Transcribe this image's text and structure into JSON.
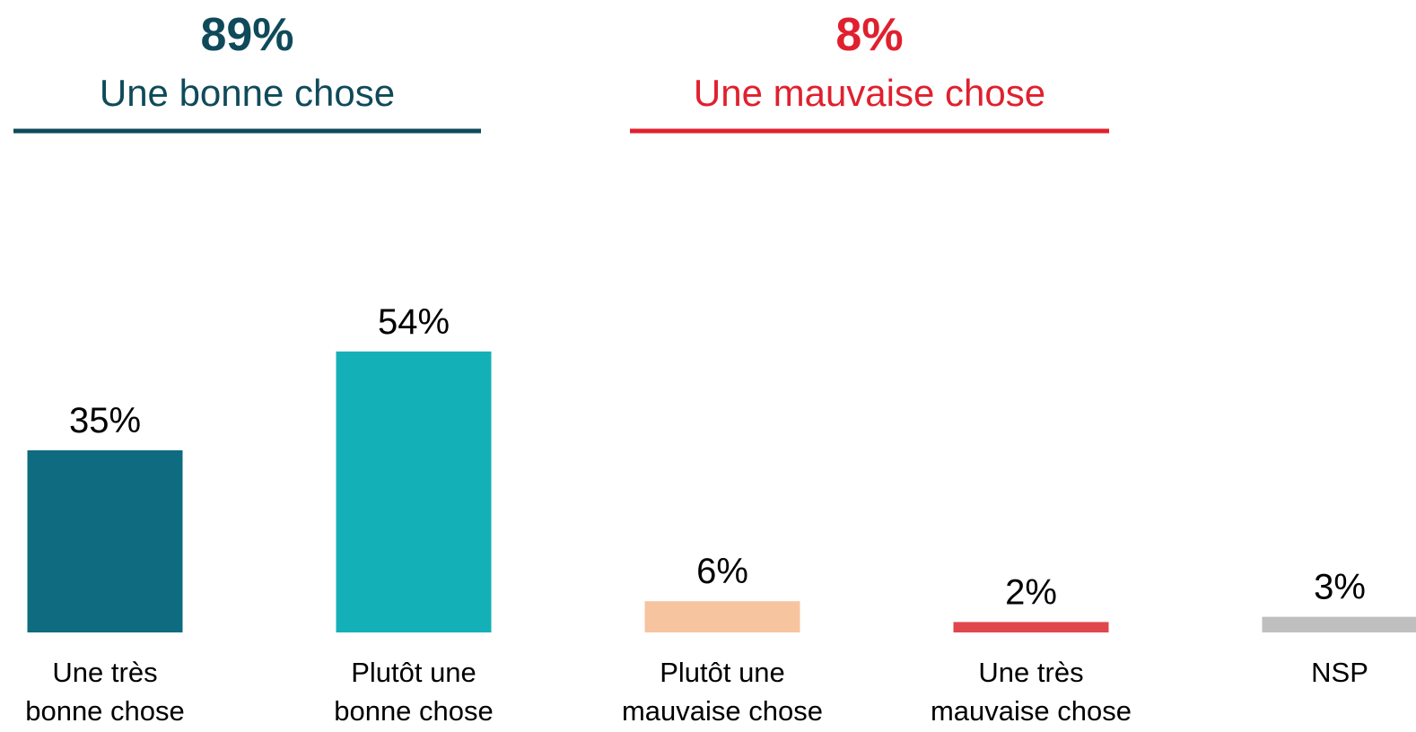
{
  "chart_data": {
    "type": "bar",
    "groups": [
      {
        "value": 89,
        "value_label": "89%",
        "label": "Une bonne chose",
        "color": "#0f4a5a"
      },
      {
        "value": 8,
        "value_label": "8%",
        "label": "Une mauvaise chose",
        "color": "#e0202e"
      }
    ],
    "categories": [
      [
        "Une très",
        "bonne chose"
      ],
      [
        "Plutôt une",
        "bonne chose"
      ],
      [
        "Plutôt une",
        "mauvaise chose"
      ],
      [
        "Une très",
        "mauvaise chose"
      ],
      [
        "NSP"
      ]
    ],
    "values": [
      35,
      54,
      6,
      2,
      3
    ],
    "value_labels": [
      "35%",
      "54%",
      "6%",
      "2%",
      "3%"
    ],
    "colors": [
      "#0f6b80",
      "#14b0b8",
      "#f7c4a0",
      "#e0474c",
      "#bfbfbf"
    ],
    "ylim": [
      0,
      60
    ]
  }
}
